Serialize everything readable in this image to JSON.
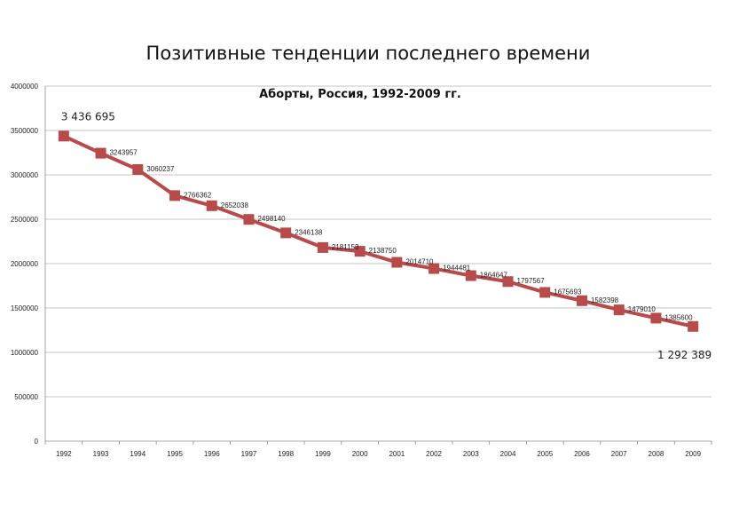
{
  "slide": {
    "title": "Позитивные тенденции последнего времени"
  },
  "chart_data": {
    "type": "line",
    "title": "Аборты, Россия, 1992-2009 гг.",
    "xlabel": "",
    "ylabel": "",
    "ylim": [
      0,
      4000000
    ],
    "yticks": [
      "0",
      "500000",
      "1000000",
      "1500000",
      "2000000",
      "2500000",
      "3000000",
      "3500000",
      "4000000"
    ],
    "categories": [
      "1992",
      "1993",
      "1994",
      "1995",
      "1996",
      "1997",
      "1998",
      "1999",
      "2000",
      "2001",
      "2002",
      "2003",
      "2004",
      "2005",
      "2006",
      "2007",
      "2008",
      "2009"
    ],
    "series": [
      {
        "values": [
          3436695,
          3243957,
          3060237,
          2766362,
          2652038,
          2498140,
          2346138,
          2181153,
          2138750,
          2014710,
          1944481,
          1864647,
          1797567,
          1675693,
          1582398,
          1479010,
          1385600,
          1292389
        ],
        "labels": [
          "3 436 695",
          "3243957",
          "3060237",
          "2766362",
          "2652038",
          "2498140",
          "2346138",
          "2181153",
          "2138750",
          "2014710",
          "1944481",
          "1864647",
          "1797567",
          "1675693",
          "1582398",
          "1479010",
          "1385600",
          "1 292 389"
        ]
      }
    ],
    "grid": true,
    "legend": "none",
    "line_color": "#b84a4a"
  }
}
